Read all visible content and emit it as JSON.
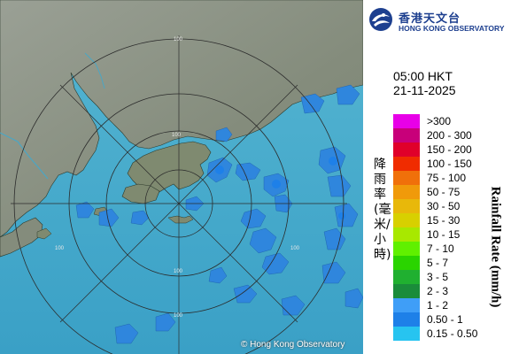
{
  "map": {
    "copyright": "© Hong Kong Observatory",
    "range_rings": [
      "100",
      "100",
      "100",
      "100",
      "100",
      "100"
    ],
    "colors": {
      "sea": "#4fb3d0",
      "land": "#8c9484",
      "ring": "#2b2b2b",
      "echo": "#2f86dd"
    }
  },
  "header": {
    "logo_icon": "hko-logo-icon",
    "org_name_zh": "香港天文台",
    "org_name_en": "HONG KONG OBSERVATORY"
  },
  "timestamp": {
    "time": "05:00 HKT",
    "date": "21-11-2025"
  },
  "legend": {
    "title_zh": "降雨率(毫米/小時)",
    "title_en": "Rainfall Rate (mm/h)",
    "items": [
      {
        "label": ">300",
        "color": "#e800e8"
      },
      {
        "label": "200 - 300",
        "color": "#c8007a"
      },
      {
        "label": "150 - 200",
        "color": "#e0002a"
      },
      {
        "label": "100 - 150",
        "color": "#f02c00"
      },
      {
        "label": "75 - 100",
        "color": "#f0700a"
      },
      {
        "label": "50 - 75",
        "color": "#f09a0a"
      },
      {
        "label": "30 - 50",
        "color": "#e8b80a"
      },
      {
        "label": "15 - 30",
        "color": "#d8d000"
      },
      {
        "label": "10 - 15",
        "color": "#a8e800"
      },
      {
        "label": "7 - 10",
        "color": "#60f000"
      },
      {
        "label": "5 - 7",
        "color": "#2ad400"
      },
      {
        "label": "3 - 5",
        "color": "#20b030"
      },
      {
        "label": "2 - 3",
        "color": "#1a8c3a"
      },
      {
        "label": "1 - 2",
        "color": "#3f9ef7"
      },
      {
        "label": "0.50 - 1",
        "color": "#1e80e8"
      },
      {
        "label": "0.15 - 0.50",
        "color": "#27c4f0"
      }
    ]
  }
}
